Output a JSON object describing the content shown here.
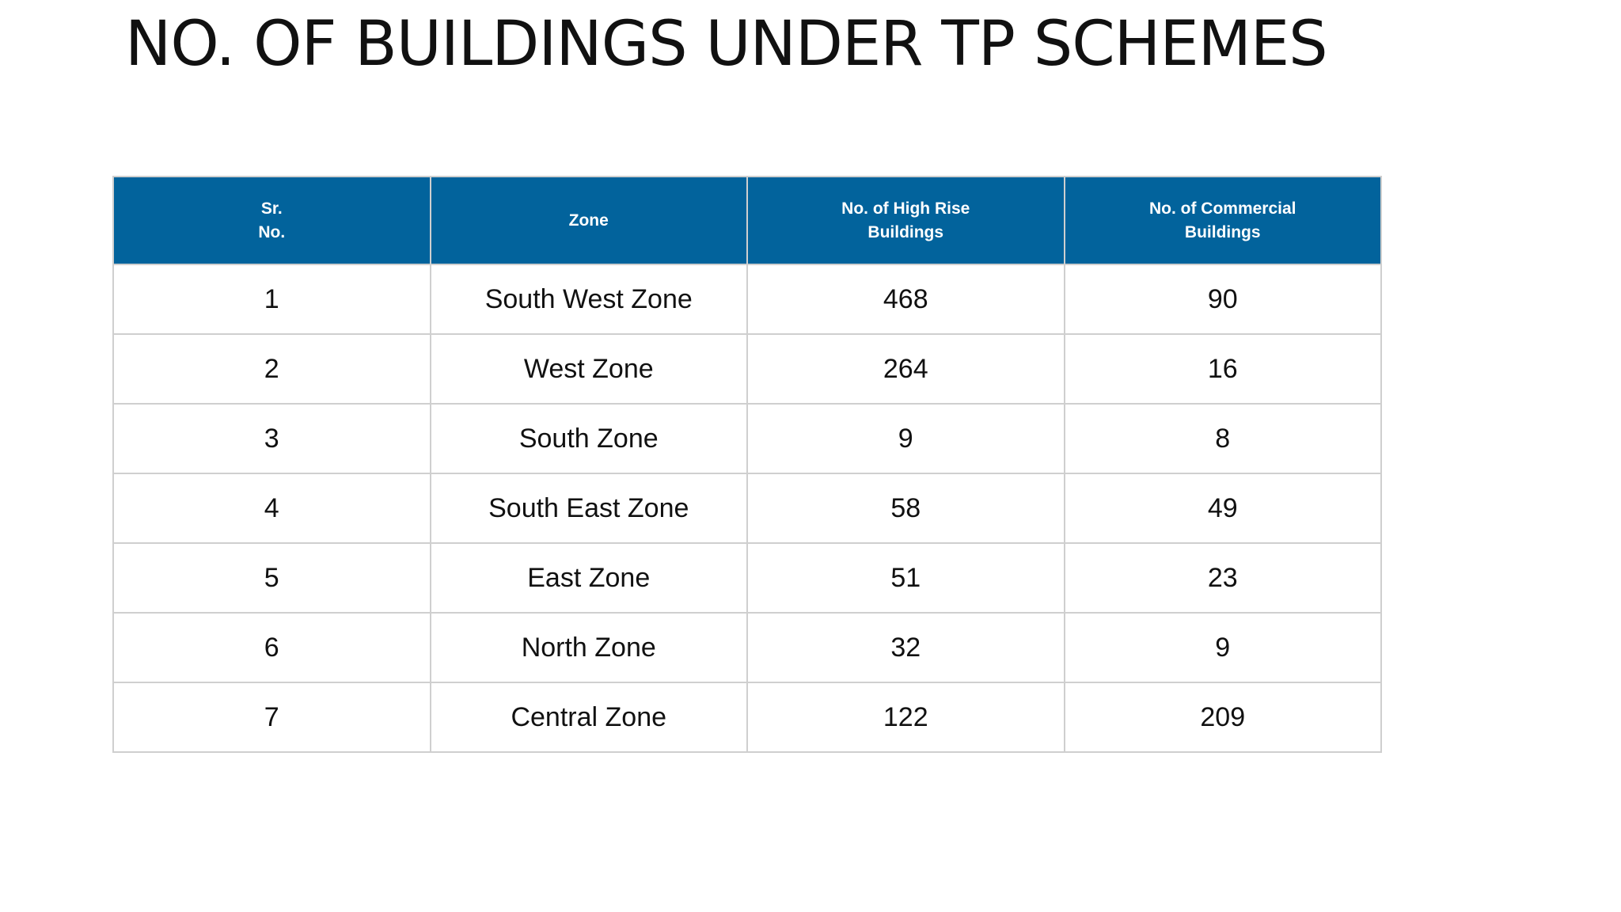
{
  "title": "NO. OF BUILDINGS UNDER TP SCHEMES",
  "table": {
    "headers": [
      "Sr. No.",
      "Zone",
      "No. of High Rise Buildings",
      "No. of Commercial Buildings"
    ],
    "rows": [
      [
        "1",
        "South West Zone",
        "468",
        "90"
      ],
      [
        "2",
        "West Zone",
        "264",
        "16"
      ],
      [
        "3",
        "South Zone",
        "9",
        "8"
      ],
      [
        "4",
        "South East Zone",
        "58",
        "49"
      ],
      [
        "5",
        "East Zone",
        "51",
        "23"
      ],
      [
        "6",
        "North Zone",
        "32",
        "9"
      ],
      [
        "7",
        "Central Zone",
        "122",
        "209"
      ]
    ]
  },
  "colors": {
    "header_background": "#02639c",
    "header_text": "#ffffff",
    "border": "#cfcfcf",
    "body_text": "#111111"
  }
}
